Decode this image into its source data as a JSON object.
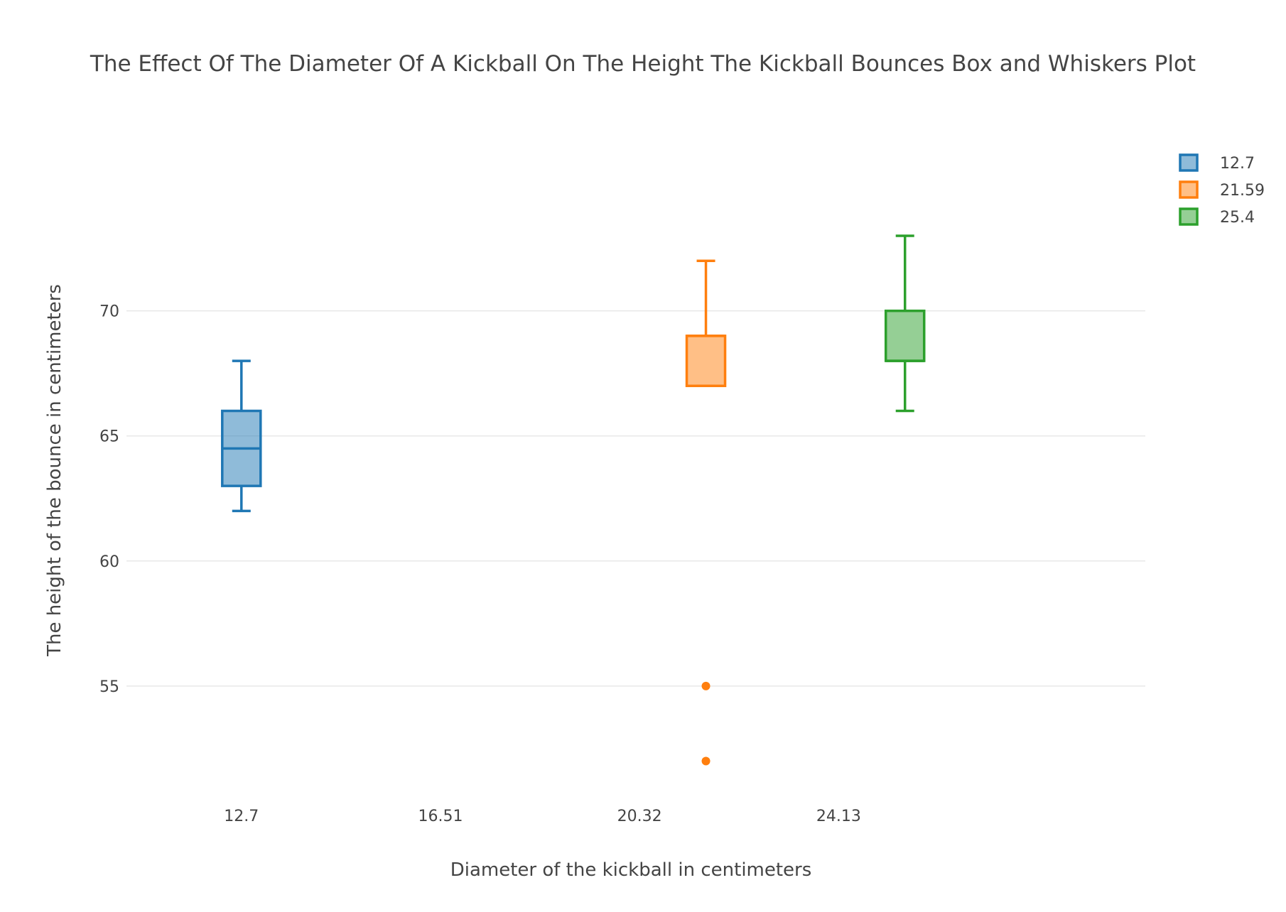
{
  "chart_data": {
    "type": "box",
    "title": "The Effect Of The Diameter Of A Kickball On The Height The Kickball Bounces Box and Whiskers Plot",
    "xlabel": "Diameter of the kickball in centimeters",
    "ylabel": "The height of the bounce in centimeters",
    "x_ticks": [
      12.7,
      16.51,
      20.32,
      24.13
    ],
    "x_tick_labels": [
      "12.7",
      "16.51",
      "20.32",
      "24.13"
    ],
    "xlim": [
      10.5,
      30.0
    ],
    "y_ticks": [
      55,
      60,
      65,
      70
    ],
    "y_tick_labels": [
      "55",
      "60",
      "65",
      "70"
    ],
    "ylim": [
      50.85,
      77.6
    ],
    "grid": true,
    "legend_position": "top-right",
    "series": [
      {
        "name": "12.7",
        "x": 12.7,
        "color": "#1f77b4",
        "fill": "rgba(31,119,180,0.5)",
        "lower_whisker": 62,
        "q1": 63,
        "median": 64.5,
        "q3": 66,
        "upper_whisker": 68,
        "outliers": []
      },
      {
        "name": "21.59",
        "x": 21.59,
        "color": "#ff7f0e",
        "fill": "rgba(255,127,14,0.5)",
        "lower_whisker": 67,
        "q1": 67,
        "median": 69,
        "q3": 69,
        "upper_whisker": 72,
        "outliers": [
          55,
          52
        ]
      },
      {
        "name": "25.4",
        "x": 25.4,
        "color": "#2ca02c",
        "fill": "rgba(44,160,44,0.5)",
        "lower_whisker": 66,
        "q1": 68,
        "median": 68,
        "q3": 70,
        "upper_whisker": 73,
        "outliers": []
      }
    ]
  }
}
